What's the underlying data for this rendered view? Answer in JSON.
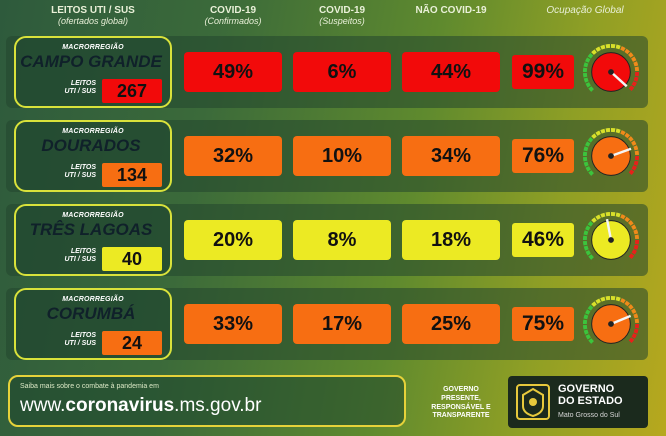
{
  "headers": {
    "leitos": {
      "title": "LEITOS UTI / SUS",
      "sub": "(ofertados global)"
    },
    "confirmados": {
      "title": "COVID-19",
      "sub": "(Confirmados)"
    },
    "suspeitos": {
      "title": "COVID-19",
      "sub": "(Suspeitos)"
    },
    "nao_covid": {
      "title": "NÃO COVID-19",
      "sub": ""
    },
    "ocupacao": {
      "title": "Ocupação Global",
      "sub": ""
    }
  },
  "regions": [
    {
      "macro": "MACRORREGIÃO",
      "name": "CAMPO GRANDE",
      "leitos_label_1": "LEITOS",
      "leitos_label_2": "UTI / SUS",
      "beds": "267",
      "confirmados": "49%",
      "suspeitos": "6%",
      "nao_covid": "44%",
      "ocupacao": "99%",
      "occupancy_level": 0.99,
      "colors": {
        "beds": "#f20a0a",
        "confirmados": "#f20a0a",
        "suspeitos": "#f20a0a",
        "nao_covid": "#f20a0a",
        "ocupacao": "#f20a0a",
        "gauge_fill": "#f20a0a"
      }
    },
    {
      "macro": "MACRORREGIÃO",
      "name": "DOURADOS",
      "leitos_label_1": "LEITOS",
      "leitos_label_2": "UTI / SUS",
      "beds": "134",
      "confirmados": "32%",
      "suspeitos": "10%",
      "nao_covid": "34%",
      "ocupacao": "76%",
      "occupancy_level": 0.76,
      "colors": {
        "beds": "#f76e12",
        "confirmados": "#f76e12",
        "suspeitos": "#f76e12",
        "nao_covid": "#f76e12",
        "ocupacao": "#f76e12",
        "gauge_fill": "#f76e12"
      }
    },
    {
      "macro": "MACRORREGIÃO",
      "name": "TRÊS LAGOAS",
      "leitos_label_1": "LEITOS",
      "leitos_label_2": "UTI / SUS",
      "beds": "40",
      "confirmados": "20%",
      "suspeitos": "8%",
      "nao_covid": "18%",
      "ocupacao": "46%",
      "occupancy_level": 0.46,
      "colors": {
        "beds": "#ecea23",
        "confirmados": "#ecea23",
        "suspeitos": "#ecea23",
        "nao_covid": "#ecea23",
        "ocupacao": "#ecea23",
        "gauge_fill": "#ecea23"
      }
    },
    {
      "macro": "MACRORREGIÃO",
      "name": "CORUMBÁ",
      "leitos_label_1": "LEITOS",
      "leitos_label_2": "UTI / SUS",
      "beds": "24",
      "confirmados": "33%",
      "suspeitos": "17%",
      "nao_covid": "25%",
      "ocupacao": "75%",
      "occupancy_level": 0.75,
      "colors": {
        "beds": "#f76e12",
        "confirmados": "#f76e12",
        "suspeitos": "#f76e12",
        "nao_covid": "#f76e12",
        "ocupacao": "#f76e12",
        "gauge_fill": "#f76e12"
      }
    }
  ],
  "footer": {
    "small_text": "Saiba mais sobre o combate à pandemia em",
    "url_prefix": "www.",
    "url_bold": "coronavirus",
    "url_suffix": ".ms.gov.br"
  },
  "gov_tagline": {
    "l1": "GOVERNO",
    "l2": "PRESENTE,",
    "l3": "RESPONSÁVEL E",
    "l4": "TRANSPARENTE"
  },
  "gov_logo": {
    "l1": "GOVERNO",
    "l2": "DO ESTADO",
    "l3": "Mato Grosso do Sul"
  }
}
